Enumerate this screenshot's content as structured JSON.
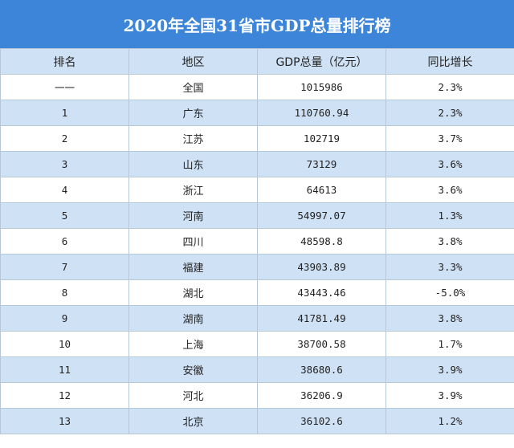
{
  "title": "2020年全国31省市GDP总量排行榜",
  "headers": [
    "排名",
    "地区",
    "GDP总量（亿元）",
    "同比增长"
  ],
  "rows": [
    {
      "rank": "一一",
      "region": "全国",
      "gdp": "1015986",
      "growth": "2.3%"
    },
    {
      "rank": "1",
      "region": "广东",
      "gdp": "110760.94",
      "growth": "2.3%"
    },
    {
      "rank": "2",
      "region": "江苏",
      "gdp": "102719",
      "growth": "3.7%"
    },
    {
      "rank": "3",
      "region": "山东",
      "gdp": "73129",
      "growth": "3.6%"
    },
    {
      "rank": "4",
      "region": "浙江",
      "gdp": "64613",
      "growth": "3.6%"
    },
    {
      "rank": "5",
      "region": "河南",
      "gdp": "54997.07",
      "growth": "1.3%"
    },
    {
      "rank": "6",
      "region": "四川",
      "gdp": "48598.8",
      "growth": "3.8%"
    },
    {
      "rank": "7",
      "region": "福建",
      "gdp": "43903.89",
      "growth": "3.3%"
    },
    {
      "rank": "8",
      "region": "湖北",
      "gdp": "43443.46",
      "growth": "-5.0%"
    },
    {
      "rank": "9",
      "region": "湖南",
      "gdp": "41781.49",
      "growth": "3.8%"
    },
    {
      "rank": "10",
      "region": "上海",
      "gdp": "38700.58",
      "growth": "1.7%"
    },
    {
      "rank": "11",
      "region": "安徽",
      "gdp": "38680.6",
      "growth": "3.9%"
    },
    {
      "rank": "12",
      "region": "河北",
      "gdp": "36206.9",
      "growth": "3.9%"
    },
    {
      "rank": "13",
      "region": "北京",
      "gdp": "36102.6",
      "growth": "1.2%"
    }
  ]
}
